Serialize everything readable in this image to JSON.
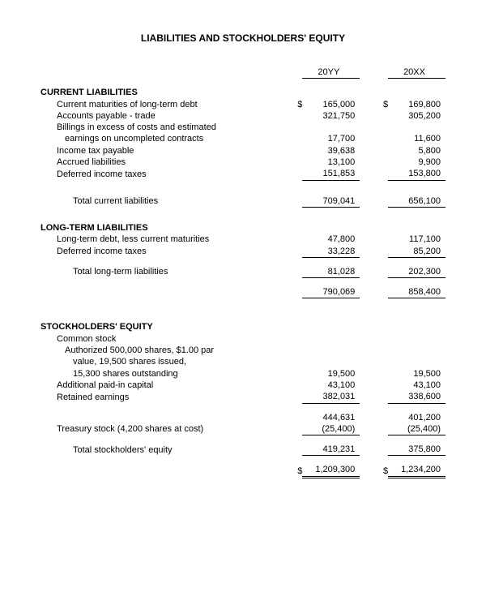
{
  "title": "LIABILITIES AND STOCKHOLDERS' EQUITY",
  "years": {
    "y1": "20YY",
    "y2": "20XX"
  },
  "currency": "$",
  "sections": {
    "current": {
      "head": "CURRENT LIABILITIES",
      "r1": {
        "label": "Current maturities of long-term debt",
        "v1": "165,000",
        "v2": "169,800"
      },
      "r2": {
        "label": "Accounts payable - trade",
        "v1": "321,750",
        "v2": "305,200"
      },
      "r3a": {
        "label": "Billings in excess of costs and estimated"
      },
      "r3b": {
        "label": "earnings on uncompleted contracts",
        "v1": "17,700",
        "v2": "11,600"
      },
      "r4": {
        "label": "Income tax payable",
        "v1": "39,638",
        "v2": "5,800"
      },
      "r5": {
        "label": "Accrued liabilities",
        "v1": "13,100",
        "v2": "9,900"
      },
      "r6": {
        "label": "Deferred income taxes",
        "v1": "151,853",
        "v2": "153,800"
      },
      "total": {
        "label": "Total current liabilities",
        "v1": "709,041",
        "v2": "656,100"
      }
    },
    "longterm": {
      "head": "LONG-TERM LIABILITIES",
      "r1": {
        "label": "Long-term debt, less current maturities",
        "v1": "47,800",
        "v2": "117,100"
      },
      "r2": {
        "label": "Deferred income taxes",
        "v1": "33,228",
        "v2": "85,200"
      },
      "total": {
        "label": "Total long-term liabilities",
        "v1": "81,028",
        "v2": "202,300"
      },
      "sum": {
        "v1": "790,069",
        "v2": "858,400"
      }
    },
    "equity": {
      "head": "STOCKHOLDERS' EQUITY",
      "r1a": {
        "label": "Common stock"
      },
      "r1b": {
        "label": "Authorized 500,000 shares, $1.00 par"
      },
      "r1c": {
        "label": "value, 19,500 shares issued,"
      },
      "r1d": {
        "label": "15,300 shares outstanding",
        "v1": "19,500",
        "v2": "19,500"
      },
      "r2": {
        "label": "Additional paid-in capital",
        "v1": "43,100",
        "v2": "43,100"
      },
      "r3": {
        "label": "Retained earnings",
        "v1": "382,031",
        "v2": "338,600"
      },
      "sub": {
        "v1": "444,631",
        "v2": "401,200"
      },
      "r4": {
        "label": "Treasury stock (4,200 shares at cost)",
        "v1": "(25,400)",
        "v2": "(25,400)"
      },
      "total": {
        "label": "Total stockholders' equity",
        "v1": "419,231",
        "v2": "375,800"
      },
      "grand": {
        "v1": "1,209,300",
        "v2": "1,234,200"
      }
    }
  }
}
